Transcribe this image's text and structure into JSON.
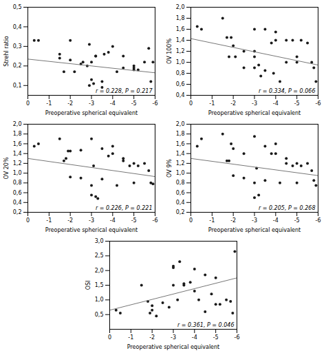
{
  "chart_data": [
    {
      "type": "scatter",
      "ylabel": "Strehl ratio",
      "xlabel": "Preoperative spherical equivalent",
      "annotation": "r = 0.228, P = 0.217",
      "grid": false,
      "ylim": [
        0.05,
        0.5
      ],
      "yticks": [
        {
          "value": 0.1,
          "label": "0,1"
        },
        {
          "value": 0.2,
          "label": "0,2"
        },
        {
          "value": 0.3,
          "label": "0,3"
        },
        {
          "value": 0.4,
          "label": "0,4"
        },
        {
          "value": 0.5,
          "label": "0,5"
        }
      ],
      "xlim": [
        0,
        -6
      ],
      "xticks": [
        0,
        -1,
        -2,
        -3,
        -4,
        -5,
        -6
      ],
      "series": [
        {
          "type": "scatter",
          "color": "#1a1a1a",
          "x": [
            -0.3,
            -0.5,
            -1.5,
            -1.5,
            -1.7,
            -2.0,
            -2.0,
            -2.2,
            -2.5,
            -2.6,
            -2.8,
            -2.9,
            -2.9,
            -3.0,
            -3.0,
            -3.1,
            -3.2,
            -3.2,
            -3.5,
            -3.5,
            -3.6,
            -3.8,
            -4.0,
            -4.2,
            -4.5,
            -4.5,
            -5.0,
            -5.0,
            -5.0,
            -5.2,
            -5.5,
            -5.7,
            -5.8,
            -5.9
          ],
          "values": [
            0.33,
            0.33,
            0.26,
            0.24,
            0.17,
            0.33,
            0.23,
            0.17,
            0.21,
            0.22,
            0.2,
            0.31,
            0.1,
            0.13,
            0.22,
            0.11,
            0.25,
            0.25,
            0.12,
            0.09,
            0.26,
            0.27,
            0.3,
            0.17,
            0.19,
            0.25,
            0.19,
            0.2,
            0.18,
            0.18,
            0.22,
            0.29,
            0.12,
            0.22
          ]
        },
        {
          "type": "line",
          "color": "#777777",
          "x": [
            0,
            -6
          ],
          "values": [
            0.235,
            0.165
          ]
        }
      ]
    },
    {
      "type": "scatter",
      "ylabel": "OV 100%",
      "xlabel": "Preoperative spherical equivalent",
      "annotation": "r = 0.334, P = 0.066",
      "grid": false,
      "ylim": [
        0.4,
        2.0
      ],
      "yticks": [
        {
          "value": 0.4,
          "label": "0,4"
        },
        {
          "value": 0.6,
          "label": "0,6"
        },
        {
          "value": 0.8,
          "label": "0,8"
        },
        {
          "value": 1.0,
          "label": "1,0"
        },
        {
          "value": 1.2,
          "label": "1,2"
        },
        {
          "value": 1.4,
          "label": "1,4"
        },
        {
          "value": 1.6,
          "label": "1,6"
        },
        {
          "value": 1.8,
          "label": "1,8"
        },
        {
          "value": 2.0,
          "label": "2,0"
        }
      ],
      "xlim": [
        0,
        -6
      ],
      "xticks": [
        0,
        -1,
        -2,
        -3,
        -4,
        -5,
        -6
      ],
      "series": [
        {
          "type": "scatter",
          "color": "#1a1a1a",
          "x": [
            -0.3,
            -0.5,
            -1.5,
            -1.7,
            -1.8,
            -1.9,
            -2.0,
            -2.1,
            -2.5,
            -2.5,
            -3.0,
            -3.0,
            -3.0,
            -3.0,
            -3.2,
            -3.3,
            -3.5,
            -3.5,
            -3.8,
            -3.9,
            -4.0,
            -4.0,
            -4.2,
            -4.5,
            -4.5,
            -4.8,
            -5.0,
            -5.0,
            -5.2,
            -5.5,
            -5.7,
            -5.8,
            -5.9
          ],
          "values": [
            1.65,
            1.6,
            1.8,
            1.45,
            1.1,
            1.45,
            1.3,
            1.1,
            0.9,
            1.2,
            1.6,
            1.2,
            1.1,
            0.9,
            0.95,
            0.75,
            1.6,
            0.85,
            1.35,
            0.8,
            1.55,
            1.4,
            0.65,
            1.4,
            1.0,
            1.4,
            1.1,
            1.0,
            1.4,
            1.35,
            1.0,
            0.9,
            0.65
          ]
        },
        {
          "type": "line",
          "color": "#777777",
          "x": [
            0,
            -6
          ],
          "values": [
            1.43,
            0.95
          ]
        }
      ]
    },
    {
      "type": "scatter",
      "ylabel": "OV 20%",
      "xlabel": "Preoperative spherical equivalent",
      "annotation": "r = 0.226, P = 0.221",
      "grid": false,
      "ylim": [
        0.2,
        2.0
      ],
      "yticks": [
        {
          "value": 0.2,
          "label": "0,2"
        },
        {
          "value": 0.4,
          "label": "0,4"
        },
        {
          "value": 0.6,
          "label": "0,6"
        },
        {
          "value": 0.8,
          "label": "0,8"
        },
        {
          "value": 1.0,
          "label": "1,0"
        },
        {
          "value": 1.2,
          "label": "1,2"
        },
        {
          "value": 1.4,
          "label": "1,4"
        },
        {
          "value": 1.6,
          "label": "1,6"
        },
        {
          "value": 1.8,
          "label": "1,8"
        },
        {
          "value": 2.0,
          "label": "2,0"
        }
      ],
      "xlim": [
        0,
        -6
      ],
      "xticks": [
        0,
        -1,
        -2,
        -3,
        -4,
        -5,
        -6
      ],
      "series": [
        {
          "type": "scatter",
          "color": "#1a1a1a",
          "x": [
            -0.3,
            -0.5,
            -1.5,
            -1.7,
            -1.8,
            -1.9,
            -2.0,
            -2.0,
            -2.5,
            -2.5,
            -3.0,
            -3.0,
            -3.0,
            -3.1,
            -3.2,
            -3.3,
            -3.5,
            -3.5,
            -3.8,
            -4.0,
            -4.0,
            -4.2,
            -4.5,
            -4.5,
            -4.8,
            -5.0,
            -5.0,
            -5.2,
            -5.5,
            -5.7,
            -5.8,
            -5.9
          ],
          "values": [
            1.55,
            1.6,
            1.7,
            1.25,
            1.3,
            1.45,
            0.92,
            1.45,
            0.9,
            1.47,
            1.7,
            0.75,
            0.55,
            1.15,
            0.52,
            0.48,
            1.5,
            0.88,
            1.35,
            1.55,
            1.4,
            0.75,
            1.3,
            1.25,
            1.15,
            0.8,
            1.2,
            1.15,
            1.2,
            1.05,
            0.8,
            0.78
          ]
        },
        {
          "type": "line",
          "color": "#777777",
          "x": [
            0,
            -6
          ],
          "values": [
            1.3,
            0.93
          ]
        }
      ]
    },
    {
      "type": "scatter",
      "ylabel": "OV 9%",
      "xlabel": "Preoperative spherical equivalent",
      "annotation": "r = 0.205, P = 0.268",
      "grid": false,
      "ylim": [
        0.2,
        2.0
      ],
      "yticks": [
        {
          "value": 0.2,
          "label": "0,2"
        },
        {
          "value": 0.4,
          "label": "0,4"
        },
        {
          "value": 0.6,
          "label": "0,6"
        },
        {
          "value": 0.8,
          "label": "0,8"
        },
        {
          "value": 1.0,
          "label": "1,0"
        },
        {
          "value": 1.2,
          "label": "1,2"
        },
        {
          "value": 1.4,
          "label": "1,4"
        },
        {
          "value": 1.6,
          "label": "1,6"
        },
        {
          "value": 1.8,
          "label": "1,8"
        },
        {
          "value": 2.0,
          "label": "2,0"
        }
      ],
      "xlim": [
        0,
        -6
      ],
      "xticks": [
        0,
        -1,
        -2,
        -3,
        -4,
        -5,
        -6
      ],
      "series": [
        {
          "type": "scatter",
          "color": "#1a1a1a",
          "x": [
            -0.3,
            -0.5,
            -1.5,
            -1.7,
            -1.8,
            -1.9,
            -2.0,
            -2.0,
            -2.5,
            -2.5,
            -3.0,
            -3.0,
            -3.0,
            -3.1,
            -3.2,
            -3.5,
            -3.5,
            -3.8,
            -4.0,
            -4.0,
            -4.2,
            -4.5,
            -4.5,
            -4.8,
            -5.0,
            -5.0,
            -5.2,
            -5.5,
            -5.7,
            -5.8,
            -5.9
          ],
          "values": [
            1.55,
            1.7,
            1.8,
            1.25,
            1.25,
            1.6,
            0.95,
            1.5,
            0.9,
            1.4,
            1.75,
            0.8,
            0.5,
            1.1,
            0.55,
            1.55,
            0.85,
            1.4,
            1.6,
            1.4,
            0.8,
            1.3,
            1.2,
            1.15,
            0.8,
            1.2,
            1.15,
            1.2,
            1.05,
            0.85,
            0.75
          ]
        },
        {
          "type": "line",
          "color": "#777777",
          "x": [
            0,
            -6
          ],
          "values": [
            1.3,
            0.95
          ]
        }
      ]
    },
    {
      "type": "scatter",
      "ylabel": "OSI",
      "xlabel": "Preoperative spherical equivalent",
      "annotation": "r = 0.361, P = 0.046",
      "grid": false,
      "ylim": [
        0.0,
        3.0
      ],
      "yticks": [
        {
          "value": 0.5,
          "label": "0,5"
        },
        {
          "value": 1.0,
          "label": "1,0"
        },
        {
          "value": 1.5,
          "label": "1,5"
        },
        {
          "value": 2.0,
          "label": "2,0"
        },
        {
          "value": 2.5,
          "label": "2,5"
        },
        {
          "value": 3.0,
          "label": "3,0"
        }
      ],
      "xlim": [
        0,
        -6
      ],
      "xticks": [
        0,
        -1,
        -2,
        -3,
        -4,
        -5,
        -6
      ],
      "series": [
        {
          "type": "scatter",
          "color": "#1a1a1a",
          "x": [
            -0.3,
            -0.5,
            -1.5,
            -1.8,
            -1.9,
            -2.0,
            -2.0,
            -2.2,
            -2.5,
            -2.8,
            -3.0,
            -3.0,
            -3.0,
            -3.2,
            -3.3,
            -3.5,
            -3.5,
            -3.8,
            -4.0,
            -4.0,
            -4.2,
            -4.5,
            -4.5,
            -4.8,
            -5.0,
            -5.0,
            -5.2,
            -5.5,
            -5.7,
            -5.8,
            -5.9
          ],
          "values": [
            0.65,
            0.55,
            1.5,
            0.95,
            0.55,
            0.65,
            0.8,
            0.45,
            0.9,
            0.75,
            2.15,
            2.1,
            1.5,
            1.0,
            2.3,
            1.5,
            1.55,
            1.6,
            2.05,
            1.3,
            1.0,
            0.6,
            1.85,
            1.2,
            1.75,
            0.85,
            0.85,
            1.0,
            0.95,
            0.55,
            2.65
          ]
        },
        {
          "type": "line",
          "color": "#777777",
          "x": [
            0,
            -6
          ],
          "values": [
            0.65,
            1.75
          ]
        }
      ]
    }
  ]
}
